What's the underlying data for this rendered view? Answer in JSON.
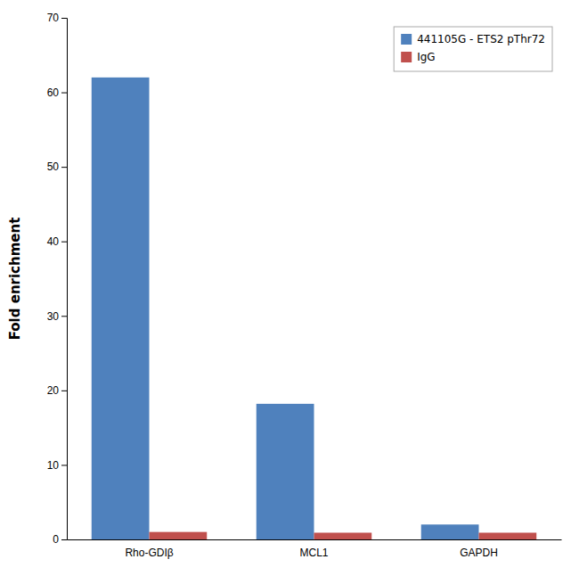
{
  "chart_data": {
    "type": "bar",
    "categories": [
      "Rho-GDIβ",
      "MCL1",
      "GAPDH"
    ],
    "series": [
      {
        "name": "441105G - ETS2 pThr72",
        "color": "#4F81BD",
        "values": [
          62.0,
          18.2,
          2.0
        ]
      },
      {
        "name": "IgG",
        "color": "#C0504D",
        "values": [
          1.0,
          0.9,
          0.9
        ]
      }
    ],
    "ylabel": "Fold enrichment",
    "ylim": [
      0,
      70
    ],
    "yticks": [
      0,
      10,
      20,
      30,
      40,
      50,
      60,
      70
    ],
    "grid": false,
    "legend": "upper right"
  }
}
